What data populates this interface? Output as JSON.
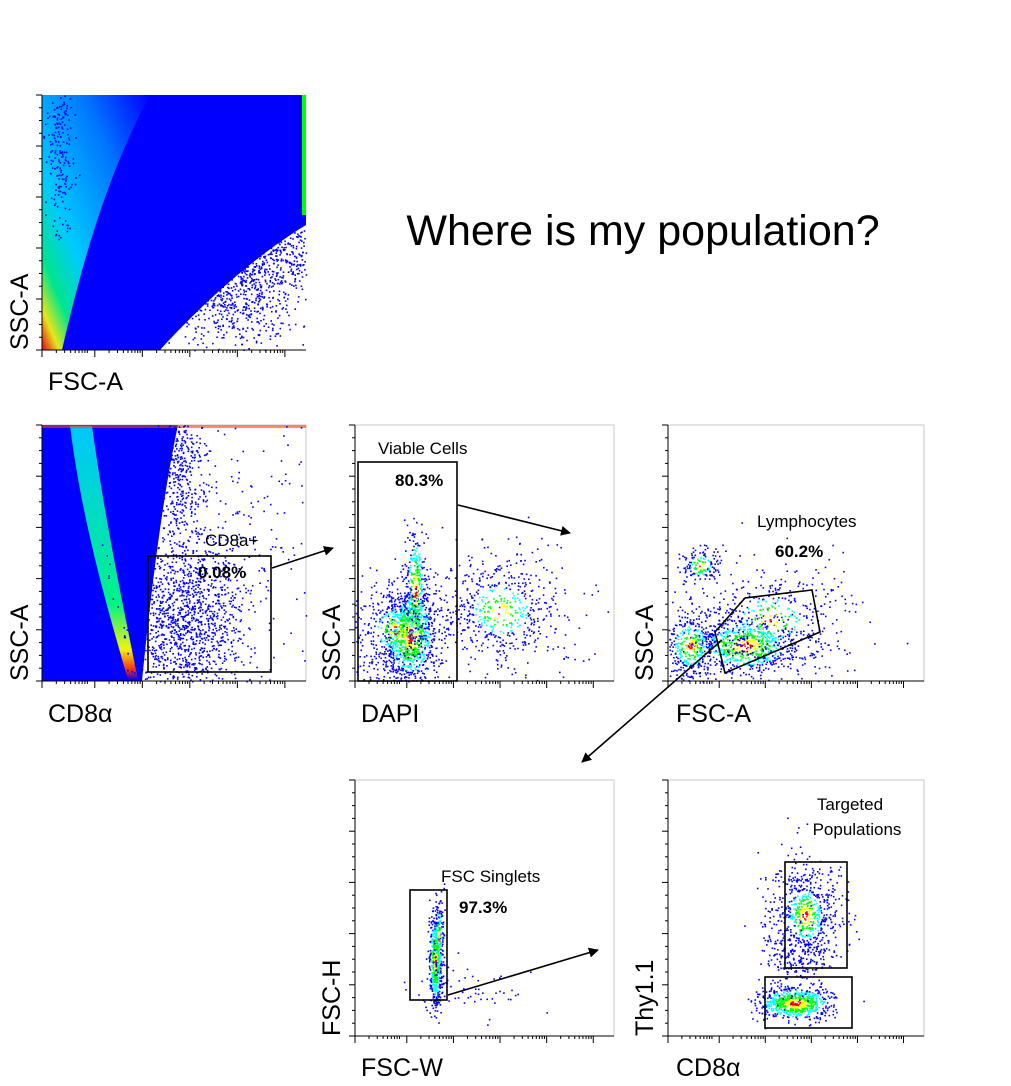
{
  "title": "Where is my population?",
  "colors": {
    "low": "#0000ff",
    "mid": "#00ffff",
    "midhigh": "#00ff00",
    "high": "#ffff00",
    "peak": "#ff0000"
  },
  "chart_data": {
    "type": "scatter",
    "title": "Where is my population?",
    "plots": [
      {
        "id": "p1",
        "xlabel": "FSC-A",
        "ylabel": "SSC-A",
        "gates": []
      },
      {
        "id": "p2",
        "xlabel": "CD8α",
        "ylabel": "SSC-A",
        "gates": [
          {
            "name": "CD8a+",
            "percent": "0.08%"
          }
        ]
      },
      {
        "id": "p3",
        "xlabel": "DAPI",
        "ylabel": "SSC-A",
        "gates": [
          {
            "name": "Viable Cells",
            "percent": "80.3%"
          }
        ]
      },
      {
        "id": "p4",
        "xlabel": "FSC-A",
        "ylabel": "SSC-A",
        "gates": [
          {
            "name": "Lymphocytes",
            "percent": "60.2%"
          }
        ]
      },
      {
        "id": "p5",
        "xlabel": "FSC-W",
        "ylabel": "FSC-H",
        "gates": [
          {
            "name": "FSC Singlets",
            "percent": "97.3%"
          }
        ]
      },
      {
        "id": "p6",
        "xlabel": "CD8α",
        "ylabel": "Thy1.1",
        "gates": [
          {
            "name_line1": "Targeted",
            "name_line2": "Populations"
          }
        ]
      }
    ]
  }
}
